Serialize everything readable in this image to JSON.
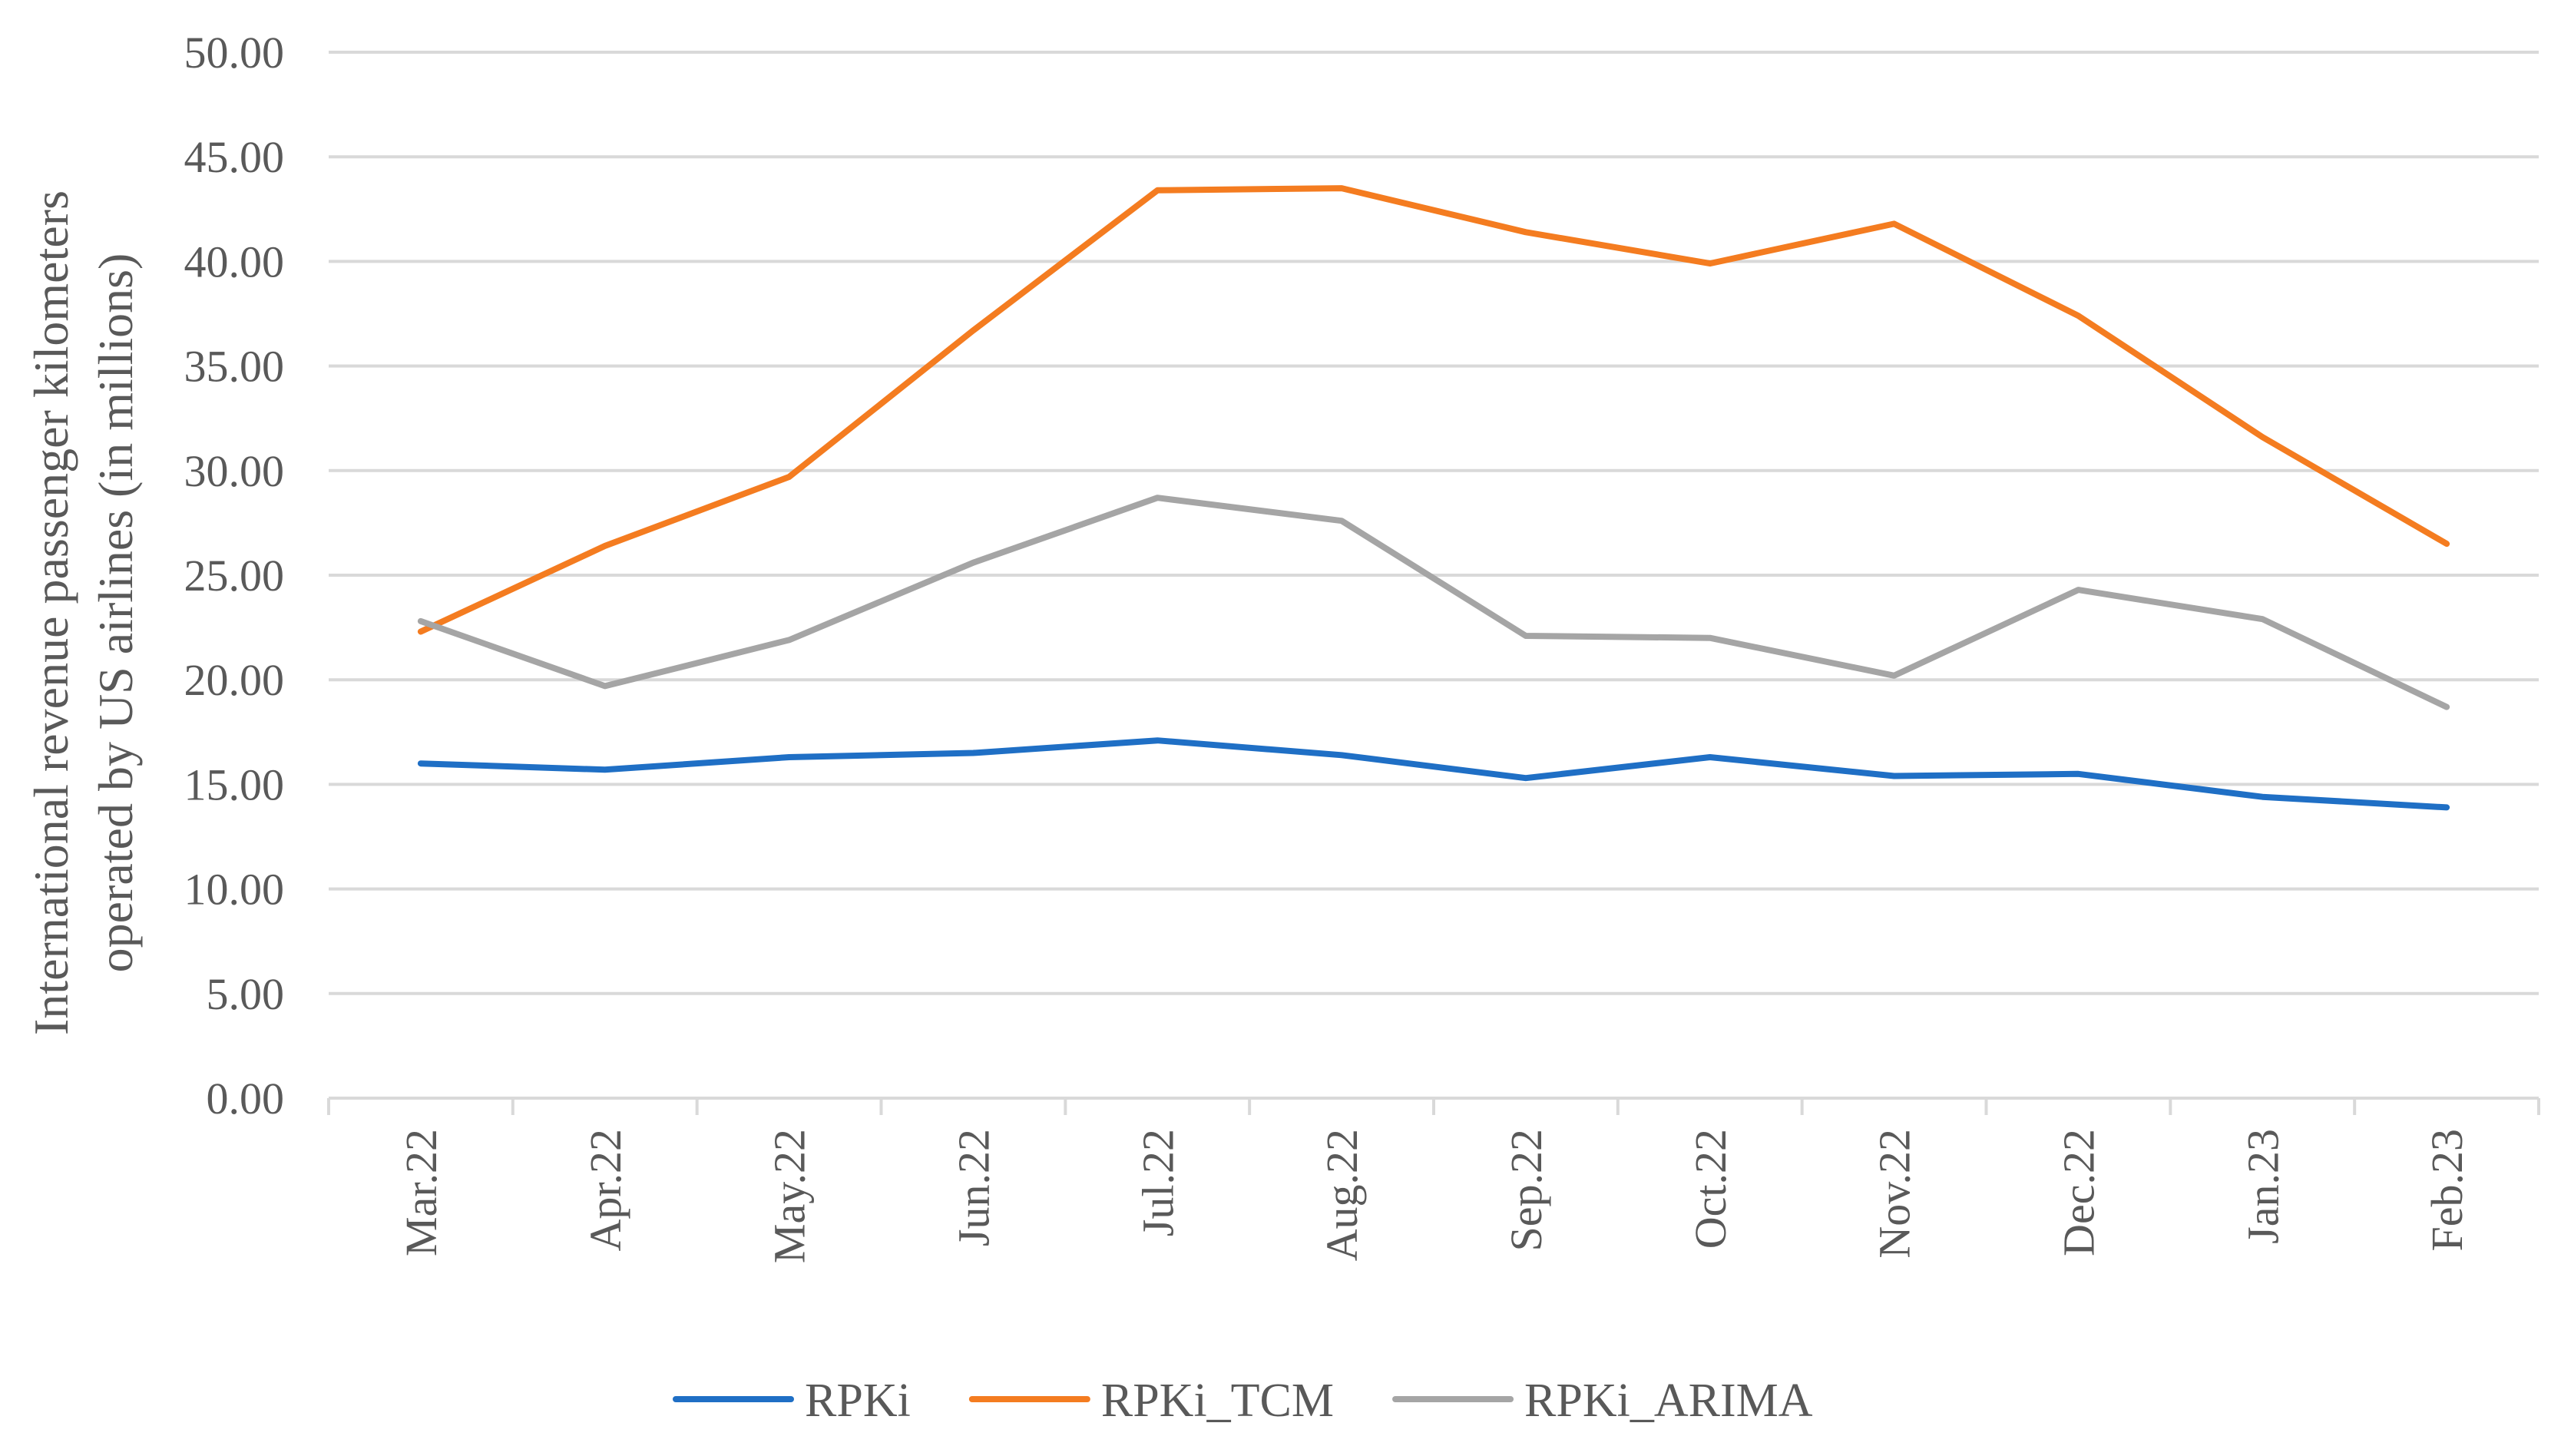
{
  "chart_data": {
    "type": "line",
    "title": "",
    "xlabel": "",
    "ylabel_lines": [
      "International revenue passenger kilometers",
      "operated by US airlines (in millions)"
    ],
    "ylim": [
      0,
      50
    ],
    "ytick_labels": [
      "0.00",
      "5.00",
      "10.00",
      "15.00",
      "20.00",
      "25.00",
      "30.00",
      "35.00",
      "40.00",
      "45.00",
      "50.00"
    ],
    "grid": true,
    "legend_position": "bottom",
    "categories": [
      "Mar.22",
      "Apr.22",
      "May.22",
      "Jun.22",
      "Jul.22",
      "Aug.22",
      "Sep.22",
      "Oct.22",
      "Nov.22",
      "Dec.22",
      "Jan.23",
      "Feb.23"
    ],
    "series": [
      {
        "name": "RPKi",
        "color": "#1f6fc5",
        "values": [
          16.0,
          15.7,
          16.3,
          16.5,
          17.1,
          16.4,
          15.3,
          16.3,
          15.4,
          15.5,
          14.4,
          13.9
        ]
      },
      {
        "name": "RPKi_TCM",
        "color": "#f47c20",
        "values": [
          22.3,
          26.4,
          29.7,
          36.7,
          43.4,
          43.5,
          41.4,
          39.9,
          41.8,
          37.4,
          31.6,
          26.5
        ]
      },
      {
        "name": "RPKi_ARIMA",
        "color": "#a5a5a5",
        "values": [
          22.8,
          19.7,
          21.9,
          25.6,
          28.7,
          27.6,
          22.1,
          22.0,
          20.2,
          24.3,
          22.9,
          18.7
        ]
      }
    ]
  }
}
